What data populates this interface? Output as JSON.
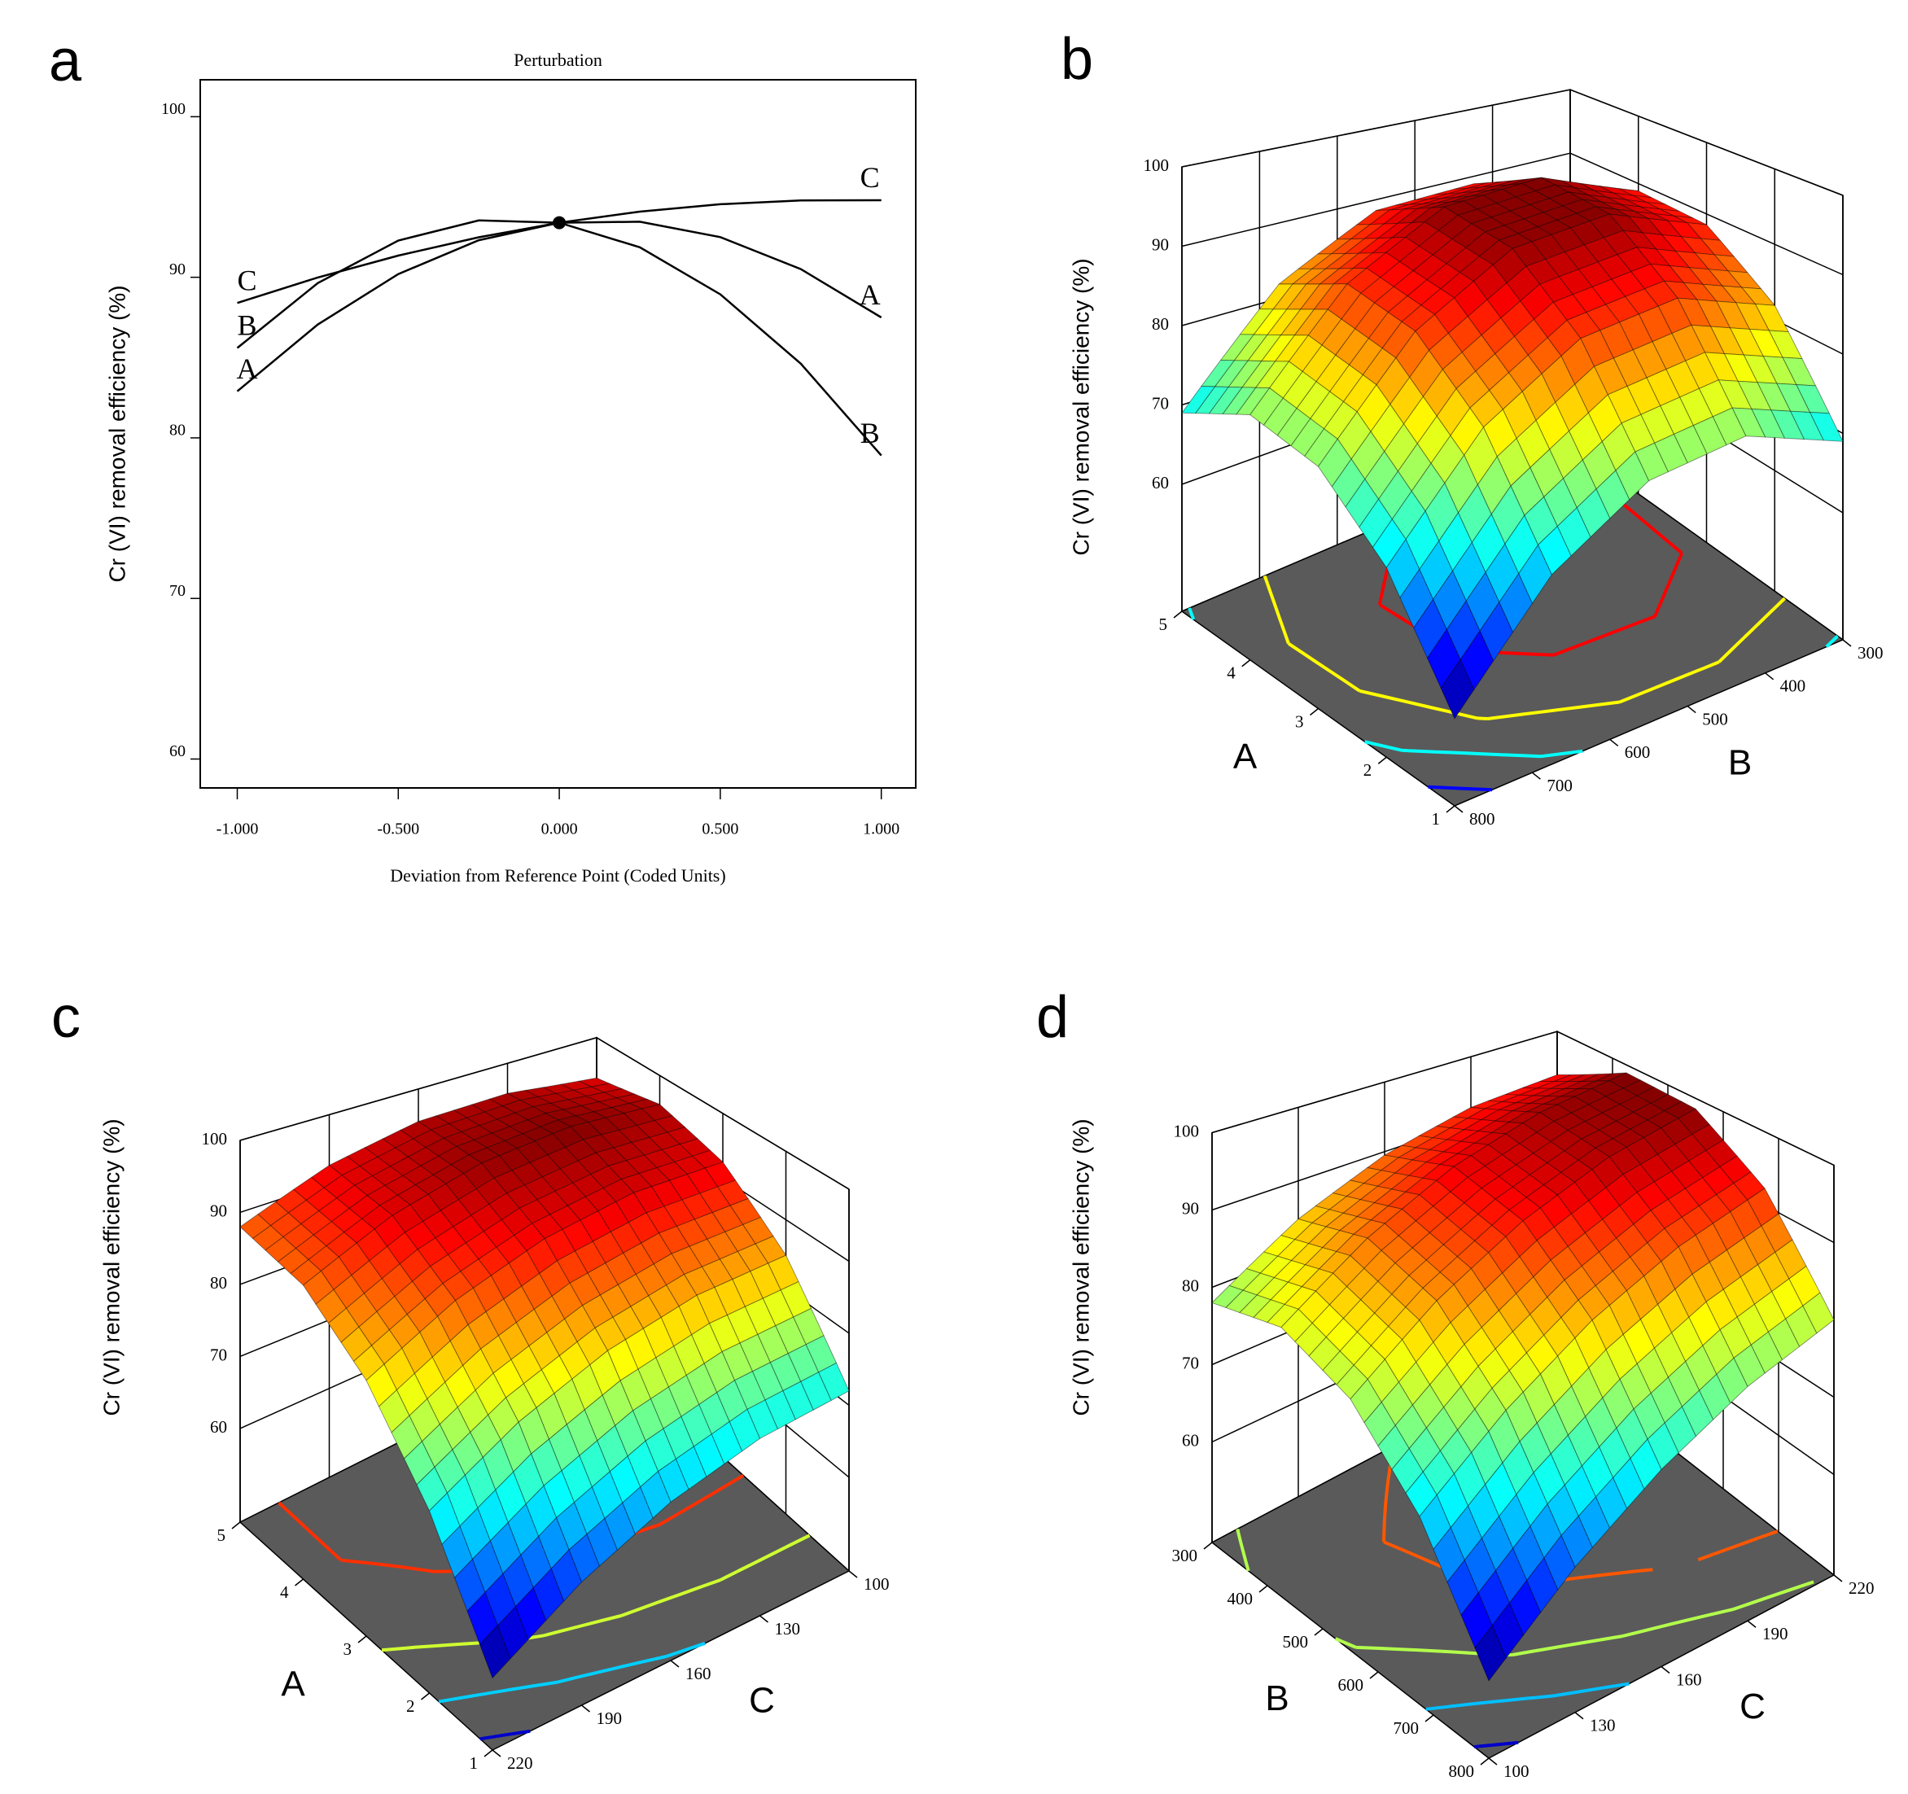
{
  "chart_data": [
    {
      "type": "line",
      "panel": "a",
      "title": "Perturbation",
      "x_label": "Deviation from Reference Point (Coded Units)",
      "y_label": "Cr (VI) removal efficiency (%)",
      "x": [
        -1,
        -0.75,
        -0.5,
        -0.25,
        0,
        0.25,
        0.5,
        0.75,
        1
      ],
      "series": [
        {
          "name": "A",
          "color": "#000000",
          "values": [
            82.9,
            87.06,
            90.2,
            92.31,
            93.4,
            93.46,
            92.5,
            90.51,
            87.5
          ]
        },
        {
          "name": "B",
          "color": "#000000",
          "values": [
            85.6,
            89.64,
            92.29,
            93.54,
            93.4,
            91.87,
            88.94,
            84.62,
            78.9
          ]
        },
        {
          "name": "C",
          "color": "#000000",
          "values": [
            88.4,
            89.99,
            91.35,
            92.49,
            93.4,
            94.09,
            94.55,
            94.79,
            94.8
          ]
        }
      ],
      "xlim": [
        -1.115,
        1.107
      ],
      "ylim": [
        58.2,
        102.3
      ],
      "xticks": [
        {
          "value": -1,
          "label": "-1.000"
        },
        {
          "value": -0.5,
          "label": "-0.500"
        },
        {
          "value": 0,
          "label": "0.000"
        },
        {
          "value": 0.5,
          "label": "0.500"
        },
        {
          "value": 1,
          "label": "1.000"
        }
      ],
      "yticks": [
        60,
        70,
        80,
        90,
        100
      ]
    },
    {
      "type": "surface3d",
      "panel": "b",
      "z_label": "Cr (VI) removal efficiency (%)",
      "x_label": "A",
      "y_label": "B",
      "x": [
        1,
        2,
        3,
        4,
        5
      ],
      "y": [
        300,
        425,
        550,
        675,
        800
      ],
      "z": [
        [
          69,
          74.9,
          74.5,
          67.9,
          55
        ],
        [
          81.9,
          87.8,
          87.4,
          80.8,
          67.9
        ],
        [
          88.5,
          94.4,
          94,
          87.4,
          74.5
        ],
        [
          88.9,
          94.8,
          94.4,
          87.8,
          74.9
        ],
        [
          83,
          88.9,
          88.5,
          81.9,
          69
        ]
      ],
      "xlim": [
        1,
        5
      ],
      "ylim": [
        300,
        800
      ],
      "zlim": [
        44,
        100
      ],
      "xticks": [
        1,
        2,
        3,
        4,
        5
      ],
      "yticks": [
        300,
        400,
        500,
        600,
        700,
        800
      ],
      "zticks": [
        60,
        70,
        80,
        90,
        100
      ],
      "xreverse": false,
      "yreverse": true,
      "colormap": "jet",
      "floor_color": "#5a5a5a"
    },
    {
      "type": "surface3d",
      "panel": "c",
      "z_label": "Cr (VI) removal efficiency (%)",
      "x_label": "A",
      "y_label": "C",
      "x": [
        1,
        2,
        3,
        4,
        5
      ],
      "y": [
        100,
        130,
        160,
        190,
        220
      ],
      "z": [
        [
          72,
          71.6,
          69,
          64.1,
          57
        ],
        [
          84.8,
          85,
          83,
          78.8,
          72.3
        ],
        [
          92.5,
          93.4,
          92,
          88.4,
          82.5
        ],
        [
          95.3,
          96.8,
          96,
          93,
          87.8
        ],
        [
          93,
          95.1,
          95,
          92.6,
          88
        ]
      ],
      "xlim": [
        1,
        5
      ],
      "ylim": [
        100,
        220
      ],
      "zlim": [
        47,
        100
      ],
      "xticks": [
        1,
        2,
        3,
        4,
        5
      ],
      "yticks": [
        100,
        130,
        160,
        190,
        220
      ],
      "zticks": [
        60,
        70,
        80,
        90,
        100
      ],
      "xreverse": false,
      "yreverse": true,
      "colormap": "jet",
      "floor_color": "#5a5a5a"
    },
    {
      "type": "surface3d",
      "panel": "d",
      "z_label": "Cr (VI) removal efficiency (%)",
      "x_label": "B",
      "y_label": "C",
      "x": [
        300,
        425,
        550,
        675,
        800
      ],
      "y": [
        100,
        130,
        160,
        190,
        220
      ],
      "z": [
        [
          78,
          84.8,
          89.5,
          92.3,
          93
        ],
        [
          81.8,
          89,
          94.3,
          97.5,
          98.8
        ],
        [
          79.5,
          87.3,
          93,
          96.8,
          98.5
        ],
        [
          71.3,
          79.5,
          85.8,
          90,
          92.3
        ],
        [
          57,
          65.8,
          72.5,
          77.3,
          80
        ]
      ],
      "xlim": [
        300,
        800
      ],
      "ylim": [
        100,
        220
      ],
      "zlim": [
        47,
        100
      ],
      "xticks": [
        300,
        400,
        500,
        600,
        700,
        800
      ],
      "yticks": [
        100,
        130,
        160,
        190,
        220
      ],
      "zticks": [
        60,
        70,
        80,
        90,
        100
      ],
      "xreverse": true,
      "yreverse": false,
      "colormap": "jet",
      "floor_color": "#5a5a5a"
    }
  ]
}
